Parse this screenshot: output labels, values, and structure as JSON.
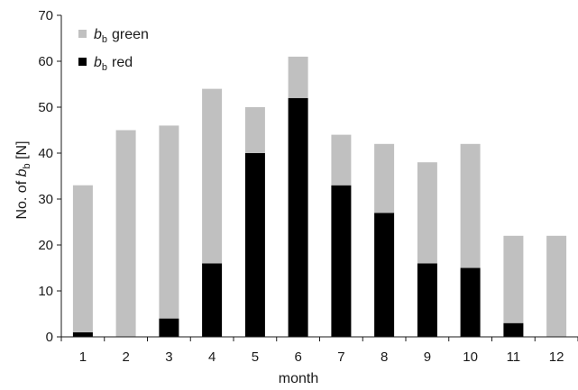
{
  "chart_data": {
    "type": "bar",
    "stacked": true,
    "categories": [
      "1",
      "2",
      "3",
      "4",
      "5",
      "6",
      "7",
      "8",
      "9",
      "10",
      "11",
      "12"
    ],
    "series": [
      {
        "name": "red",
        "legend_symbol": "b",
        "legend_subscript": "b",
        "color": "#000000",
        "values": [
          1,
          0,
          4,
          16,
          40,
          52,
          33,
          27,
          16,
          15,
          3,
          0
        ]
      },
      {
        "name": "green",
        "legend_symbol": "b",
        "legend_subscript": "b",
        "color": "#c0c0c0",
        "values": [
          32,
          45,
          42,
          38,
          10,
          9,
          11,
          15,
          22,
          27,
          19,
          22
        ]
      }
    ],
    "totals": [
      33,
      45,
      46,
      54,
      50,
      61,
      44,
      42,
      38,
      42,
      22,
      22
    ],
    "xlabel": "month",
    "ylabel": {
      "prefix": "No. of ",
      "symbol": "b",
      "subscript": "b",
      "suffix": " [N]"
    },
    "ylim": [
      0,
      70
    ],
    "yticks": [
      0,
      10,
      20,
      30,
      40,
      50,
      60,
      70
    ],
    "grid": false,
    "legend_position": "top-left"
  }
}
